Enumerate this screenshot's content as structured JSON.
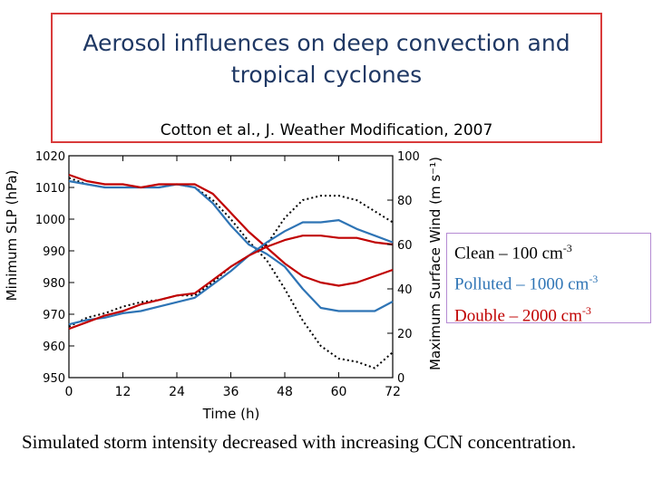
{
  "title": "Aerosol influences on deep convection and tropical cyclones",
  "citation": "Cotton et al., J. Weather Modification, 2007",
  "caption": "Simulated storm intensity decreased with increasing CCN concentration.",
  "legend": [
    {
      "label": "Clean – 100 cm",
      "sup": "-3",
      "color": "#000000"
    },
    {
      "label": "Polluted – 1000 cm",
      "sup": "-3",
      "color": "#2e74b5"
    },
    {
      "label": "Double – 2000 cm",
      "sup": "-3",
      "color": "#c00000"
    }
  ],
  "chart_data": {
    "type": "line",
    "xlabel": "Time (h)",
    "ylabel_left": "Minimum SLP (hPa)",
    "ylabel_right": "Maximum Surface Wind (m s⁻¹)",
    "xlim": [
      0,
      72
    ],
    "ylim_left": [
      950,
      1020
    ],
    "ylim_right": [
      0,
      100
    ],
    "xticks": [
      0,
      12,
      24,
      36,
      48,
      60,
      72
    ],
    "yticks_left": [
      950,
      960,
      970,
      980,
      990,
      1000,
      1010,
      1020
    ],
    "yticks_right": [
      0,
      20,
      40,
      60,
      80,
      100
    ],
    "x": [
      0,
      4,
      8,
      12,
      16,
      20,
      24,
      28,
      32,
      36,
      40,
      44,
      48,
      52,
      56,
      60,
      64,
      68,
      72
    ],
    "series": [
      {
        "name": "Clean",
        "quantity": "Minimum SLP",
        "axis": "left",
        "color": "#000000",
        "style": "dotted",
        "values": [
          1013,
          1011,
          1010,
          1010,
          1010,
          1010,
          1011,
          1010,
          1006,
          1000,
          993,
          987,
          978,
          968,
          960,
          956,
          955,
          953,
          958
        ]
      },
      {
        "name": "Polluted",
        "quantity": "Minimum SLP",
        "axis": "left",
        "color": "#2e74b5",
        "style": "solid",
        "values": [
          1012,
          1011,
          1010,
          1010,
          1010,
          1010,
          1011,
          1010,
          1005,
          998,
          992,
          989,
          985,
          978,
          972,
          971,
          971,
          971,
          974
        ]
      },
      {
        "name": "Double",
        "quantity": "Minimum SLP",
        "axis": "left",
        "color": "#c00000",
        "style": "solid",
        "values": [
          1014,
          1012,
          1011,
          1011,
          1010,
          1011,
          1011,
          1011,
          1008,
          1002,
          996,
          991,
          986,
          982,
          980,
          979,
          980,
          982,
          984
        ]
      },
      {
        "name": "Clean",
        "quantity": "Maximum Surface Wind",
        "axis": "right",
        "color": "#000000",
        "style": "dotted",
        "values": [
          23,
          27,
          29,
          32,
          34,
          35,
          37,
          37,
          43,
          50,
          55,
          60,
          72,
          80,
          82,
          82,
          80,
          75,
          70
        ]
      },
      {
        "name": "Polluted",
        "quantity": "Maximum Surface Wind",
        "axis": "right",
        "color": "#2e74b5",
        "style": "solid",
        "values": [
          24,
          26,
          27,
          29,
          30,
          32,
          34,
          36,
          42,
          48,
          55,
          61,
          66,
          70,
          70,
          71,
          67,
          64,
          61
        ]
      },
      {
        "name": "Double",
        "quantity": "Maximum Surface Wind",
        "axis": "right",
        "color": "#c00000",
        "style": "solid",
        "values": [
          22,
          25,
          28,
          30,
          33,
          35,
          37,
          38,
          44,
          50,
          55,
          59,
          62,
          64,
          64,
          63,
          63,
          61,
          60
        ]
      }
    ]
  }
}
